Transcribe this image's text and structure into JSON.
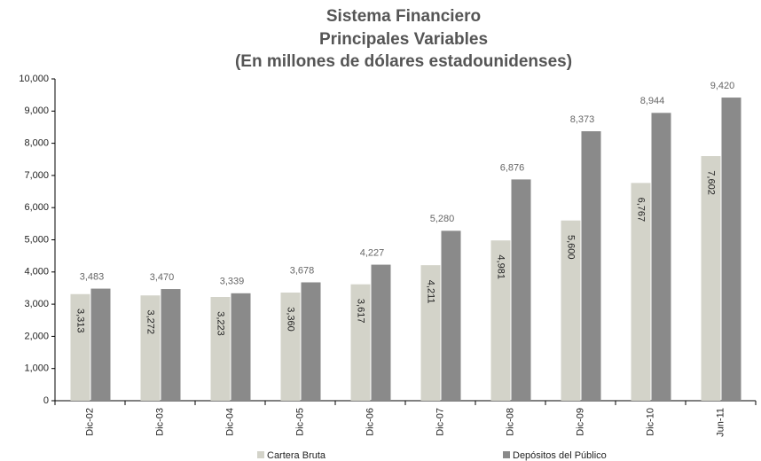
{
  "chart_data": {
    "type": "bar",
    "title": [
      "Sistema Financiero",
      "Principales Variables",
      "(En millones de dólares estadounidenses)"
    ],
    "categories": [
      "Dic-02",
      "Dic-03",
      "Dic-04",
      "Dic-05",
      "Dic-06",
      "Dic-07",
      "Dic-08",
      "Dic-09",
      "Dic-10",
      "Jun-11"
    ],
    "series": [
      {
        "name": "Cartera Bruta",
        "color": "#d3d3c9",
        "values": [
          3313,
          3272,
          3223,
          3360,
          3617,
          4211,
          4981,
          5600,
          6767,
          7602
        ],
        "value_labels": [
          "3,313",
          "3,272",
          "3,223",
          "3,360",
          "3,617",
          "4,211",
          "4,981",
          "5,600",
          "6,767",
          "7,602"
        ]
      },
      {
        "name": "Depósitos del Público",
        "color": "#8a8a8a",
        "values": [
          3483,
          3470,
          3339,
          3678,
          4227,
          5280,
          6876,
          8373,
          8944,
          9420
        ],
        "value_labels": [
          "3,483",
          "3,470",
          "3,339",
          "3,678",
          "4,227",
          "5,280",
          "6,876",
          "8,373",
          "8,944",
          "9,420"
        ]
      }
    ],
    "ylim": [
      0,
      10000
    ],
    "yticks": [
      0,
      {
        "value": 1000,
        "label": "1,000"
      },
      {
        "value": 2000,
        "label": "2,000"
      },
      {
        "value": 3000,
        "label": "3,000"
      },
      {
        "value": 4000,
        "label": "4,000"
      },
      {
        "value": 5000,
        "label": "5,000"
      },
      {
        "value": 6000,
        "label": "6,000"
      },
      {
        "value": 7000,
        "label": "7,000"
      },
      {
        "value": 8000,
        "label": "8,000"
      },
      {
        "value": 9000,
        "label": "9,000"
      },
      {
        "value": 10000,
        "label": "10,000"
      }
    ],
    "legend": "bottom"
  }
}
